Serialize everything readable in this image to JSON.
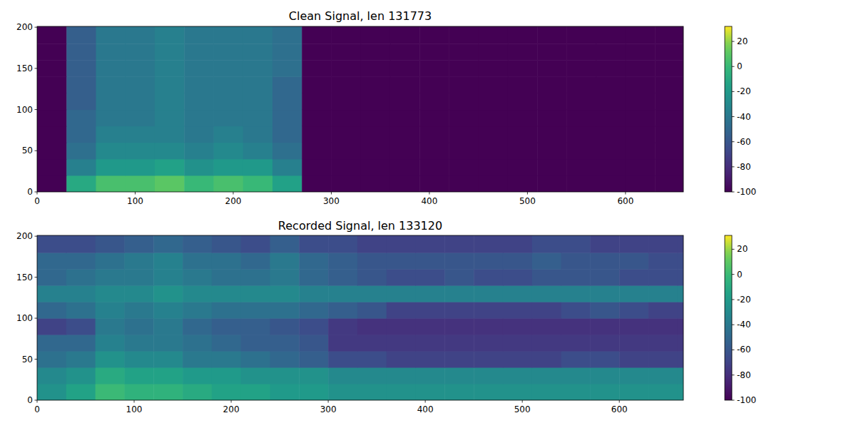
{
  "chart_data": [
    {
      "type": "heatmap",
      "title": "Clean Signal, len 131773",
      "xlim": [
        0,
        659
      ],
      "ylim": [
        0,
        201
      ],
      "xticks": [
        0,
        100,
        200,
        300,
        400,
        500,
        600
      ],
      "yticks": [
        0,
        50,
        100,
        150,
        200
      ],
      "x_bins": [
        0,
        30,
        60,
        90,
        120,
        150,
        180,
        210,
        240,
        270,
        300,
        330,
        360,
        390,
        420,
        450,
        480,
        510,
        540,
        570,
        600,
        630,
        659
      ],
      "y_bins": [
        0,
        20,
        40,
        60,
        80,
        100,
        120,
        140,
        160,
        180,
        201
      ],
      "cells": [
        [
          -100,
          -10,
          5,
          5,
          10,
          0,
          5,
          0,
          -15,
          -100,
          -100,
          -100,
          -100,
          -100,
          -100,
          -100,
          -100,
          -100,
          -100,
          -100,
          -100,
          -100
        ],
        [
          -100,
          -35,
          -20,
          -20,
          -15,
          -25,
          -20,
          -20,
          -35,
          -100,
          -100,
          -100,
          -100,
          -100,
          -100,
          -100,
          -100,
          -100,
          -100,
          -100,
          -100,
          -100
        ],
        [
          -100,
          -45,
          -30,
          -30,
          -30,
          -35,
          -30,
          -35,
          -45,
          -100,
          -100,
          -100,
          -100,
          -100,
          -100,
          -100,
          -100,
          -100,
          -100,
          -100,
          -100,
          -100
        ],
        [
          -100,
          -50,
          -35,
          -35,
          -35,
          -40,
          -35,
          -40,
          -50,
          -100,
          -100,
          -100,
          -100,
          -100,
          -100,
          -100,
          -100,
          -100,
          -100,
          -100,
          -100,
          -100
        ],
        [
          -100,
          -50,
          -40,
          -40,
          -35,
          -40,
          -40,
          -40,
          -50,
          -100,
          -100,
          -100,
          -100,
          -100,
          -100,
          -100,
          -100,
          -100,
          -100,
          -100,
          -100,
          -100
        ],
        [
          -100,
          -55,
          -40,
          -40,
          -35,
          -40,
          -40,
          -40,
          -50,
          -100,
          -100,
          -100,
          -100,
          -100,
          -100,
          -100,
          -100,
          -100,
          -100,
          -100,
          -100,
          -100
        ],
        [
          -100,
          -55,
          -40,
          -40,
          -35,
          -40,
          -40,
          -40,
          -50,
          -100,
          -100,
          -100,
          -100,
          -100,
          -100,
          -100,
          -100,
          -100,
          -100,
          -100,
          -100,
          -100
        ],
        [
          -100,
          -55,
          -40,
          -40,
          -35,
          -40,
          -40,
          -40,
          -45,
          -100,
          -100,
          -100,
          -100,
          -100,
          -100,
          -100,
          -100,
          -100,
          -100,
          -100,
          -100,
          -100
        ],
        [
          -100,
          -55,
          -40,
          -40,
          -35,
          -40,
          -40,
          -40,
          -45,
          -100,
          -100,
          -100,
          -100,
          -100,
          -100,
          -100,
          -100,
          -100,
          -100,
          -100,
          -100,
          -100
        ],
        [
          -100,
          -55,
          -40,
          -40,
          -35,
          -40,
          -40,
          -40,
          -45,
          -100,
          -100,
          -100,
          -100,
          -100,
          -100,
          -100,
          -100,
          -100,
          -100,
          -100,
          -100,
          -100
        ]
      ],
      "clim": [
        -100,
        32
      ],
      "cticks": [
        -100,
        -80,
        -60,
        -40,
        -20,
        0,
        20
      ]
    },
    {
      "type": "heatmap",
      "title": "Recorded Signal, len 133120",
      "xlim": [
        0,
        666
      ],
      "ylim": [
        0,
        201
      ],
      "xticks": [
        0,
        100,
        200,
        300,
        400,
        500,
        600
      ],
      "yticks": [
        0,
        50,
        100,
        150,
        200
      ],
      "x_bins": [
        0,
        30,
        60,
        90,
        120,
        150,
        180,
        210,
        240,
        270,
        300,
        330,
        360,
        390,
        420,
        450,
        480,
        510,
        540,
        570,
        600,
        630,
        660,
        666
      ],
      "y_bins": [
        0,
        20,
        40,
        60,
        80,
        100,
        120,
        140,
        160,
        180,
        201
      ],
      "cells": [
        [
          -25,
          -15,
          0,
          -5,
          -5,
          -10,
          -15,
          -15,
          -20,
          -20,
          -25,
          -25,
          -25,
          -25,
          -25,
          -25,
          -25,
          -25,
          -25,
          -25,
          -25,
          -25,
          -25
        ],
        [
          -30,
          -25,
          -10,
          -15,
          -15,
          -20,
          -20,
          -25,
          -25,
          -25,
          -30,
          -30,
          -30,
          -30,
          -30,
          -30,
          -30,
          -30,
          -30,
          -30,
          -30,
          -30,
          -30
        ],
        [
          -45,
          -40,
          -25,
          -30,
          -30,
          -40,
          -40,
          -45,
          -50,
          -55,
          -65,
          -65,
          -70,
          -70,
          -70,
          -70,
          -70,
          -70,
          -65,
          -65,
          -70,
          -70,
          -70
        ],
        [
          -50,
          -50,
          -35,
          -40,
          -40,
          -45,
          -50,
          -55,
          -55,
          -60,
          -75,
          -75,
          -75,
          -75,
          -75,
          -75,
          -75,
          -75,
          -75,
          -75,
          -75,
          -75,
          -75
        ],
        [
          -70,
          -65,
          -40,
          -45,
          -40,
          -50,
          -55,
          -55,
          -60,
          -65,
          -75,
          -78,
          -78,
          -78,
          -78,
          -78,
          -78,
          -78,
          -78,
          -78,
          -78,
          -78,
          -78
        ],
        [
          -50,
          -45,
          -35,
          -40,
          -35,
          -40,
          -45,
          -45,
          -45,
          -50,
          -55,
          -60,
          -70,
          -70,
          -70,
          -70,
          -70,
          -70,
          -65,
          -60,
          -65,
          -70,
          -70
        ],
        [
          -35,
          -35,
          -30,
          -30,
          -25,
          -30,
          -30,
          -30,
          -30,
          -35,
          -35,
          -35,
          -35,
          -35,
          -35,
          -35,
          -35,
          -35,
          -35,
          -35,
          -35,
          -35,
          -35
        ],
        [
          -50,
          -45,
          -40,
          -40,
          -35,
          -40,
          -45,
          -45,
          -40,
          -50,
          -55,
          -60,
          -65,
          -65,
          -60,
          -65,
          -65,
          -60,
          -60,
          -60,
          -65,
          -65,
          -65
        ],
        [
          -50,
          -50,
          -45,
          -40,
          -35,
          -45,
          -45,
          -50,
          -40,
          -50,
          -55,
          -60,
          -60,
          -60,
          -60,
          -60,
          -60,
          -55,
          -60,
          -60,
          -60,
          -65,
          -65
        ],
        [
          -65,
          -65,
          -60,
          -55,
          -50,
          -55,
          -60,
          -65,
          -55,
          -65,
          -65,
          -70,
          -70,
          -70,
          -70,
          -70,
          -70,
          -65,
          -65,
          -70,
          -70,
          -70,
          -70
        ]
      ],
      "clim": [
        -100,
        31
      ],
      "cticks": [
        -100,
        -80,
        -60,
        -40,
        -20,
        0,
        20
      ]
    }
  ]
}
